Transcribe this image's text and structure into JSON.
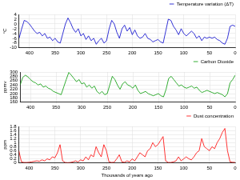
{
  "chart_data": [
    {
      "type": "line",
      "x": [
        420,
        415,
        410,
        405,
        400,
        395,
        390,
        385,
        380,
        375,
        370,
        365,
        360,
        355,
        350,
        345,
        340,
        335,
        330,
        325,
        320,
        315,
        310,
        305,
        300,
        295,
        290,
        285,
        280,
        275,
        270,
        265,
        260,
        255,
        250,
        245,
        240,
        235,
        230,
        225,
        220,
        215,
        210,
        205,
        200,
        195,
        190,
        185,
        180,
        175,
        170,
        165,
        160,
        155,
        150,
        145,
        140,
        135,
        130,
        125,
        120,
        115,
        110,
        105,
        100,
        95,
        90,
        85,
        80,
        75,
        70,
        65,
        60,
        55,
        50,
        45,
        40,
        35,
        30,
        25,
        20,
        15,
        10,
        5,
        0
      ],
      "series": [
        {
          "name": "Temperature variation (ΔT)",
          "color": "#0000cc",
          "values": [
            -6,
            -2,
            1.5,
            1,
            0,
            -1.5,
            -3,
            -4,
            -3.5,
            -5,
            -4,
            -6,
            -5.5,
            -7,
            -6,
            -7.5,
            -8,
            -4,
            0,
            2.5,
            0.5,
            -2,
            -3.5,
            -2,
            -5,
            -4,
            -6.5,
            -5,
            -7,
            -6,
            -8.5,
            -7,
            -6,
            -8,
            -7,
            -2,
            1.5,
            0,
            -3.5,
            -6,
            -2,
            -0.5,
            -3,
            -1.5,
            -4.5,
            -2.5,
            -5,
            -6,
            -5.5,
            -4,
            -6,
            -6.5,
            -7.5,
            -7,
            -6.5,
            -7.5,
            -8,
            -3,
            2,
            1.5,
            -1,
            -2.5,
            -4.5,
            -2,
            -4,
            -5,
            -4,
            -3,
            -4,
            -6,
            -5,
            -7,
            -5.5,
            -6,
            -5.5,
            -6,
            -5.5,
            -6.5,
            -7,
            -8,
            -8.5,
            -6,
            -1,
            -0.5,
            -1
          ]
        }
      ],
      "xlim": [
        420,
        0
      ],
      "xticks": [
        400,
        350,
        300,
        250,
        200,
        150,
        100,
        50,
        0
      ],
      "ylim": [
        -10,
        4
      ],
      "yticks": [
        -10,
        -8,
        -6,
        -4,
        -2,
        0,
        2,
        4
      ],
      "ylabel": "°C",
      "grid": true,
      "legend": "upper right"
    },
    {
      "type": "line",
      "x": [
        420,
        415,
        410,
        405,
        400,
        395,
        390,
        385,
        380,
        375,
        370,
        365,
        360,
        355,
        350,
        345,
        340,
        335,
        330,
        325,
        320,
        315,
        310,
        305,
        300,
        295,
        290,
        285,
        280,
        275,
        270,
        265,
        260,
        255,
        250,
        245,
        240,
        235,
        230,
        225,
        220,
        215,
        210,
        205,
        200,
        195,
        190,
        185,
        180,
        175,
        170,
        165,
        160,
        155,
        150,
        145,
        140,
        135,
        130,
        125,
        120,
        115,
        110,
        105,
        100,
        95,
        90,
        85,
        80,
        75,
        70,
        65,
        60,
        55,
        50,
        45,
        40,
        35,
        30,
        25,
        20,
        15,
        10,
        5,
        0
      ],
      "series": [
        {
          "name": "Carbon Dioxide",
          "color": "#009900",
          "values": [
            240,
            275,
            285,
            278,
            265,
            255,
            250,
            240,
            245,
            230,
            235,
            225,
            220,
            210,
            205,
            200,
            195,
            230,
            265,
            298,
            285,
            270,
            255,
            265,
            245,
            250,
            230,
            240,
            225,
            235,
            210,
            200,
            210,
            195,
            200,
            240,
            280,
            265,
            240,
            220,
            245,
            255,
            240,
            235,
            225,
            240,
            215,
            200,
            205,
            210,
            200,
            195,
            190,
            195,
            200,
            190,
            185,
            220,
            270,
            280,
            265,
            250,
            235,
            240,
            230,
            225,
            230,
            235,
            225,
            230,
            215,
            205,
            210,
            215,
            210,
            205,
            200,
            205,
            200,
            195,
            185,
            200,
            250,
            265,
            285
          ]
        }
      ],
      "xlim": [
        420,
        0
      ],
      "xticks": [
        400,
        350,
        300,
        250,
        200,
        150,
        100,
        50,
        0
      ],
      "ylim": [
        160,
        300
      ],
      "yticks": [
        160,
        180,
        200,
        220,
        240,
        260,
        280,
        300
      ],
      "ylabel": "ppmv",
      "grid": true,
      "legend": "upper right"
    },
    {
      "type": "line",
      "x": [
        420,
        415,
        410,
        405,
        400,
        395,
        390,
        385,
        380,
        375,
        370,
        365,
        360,
        355,
        350,
        345,
        340,
        335,
        330,
        325,
        320,
        315,
        310,
        305,
        300,
        295,
        290,
        285,
        280,
        275,
        270,
        265,
        260,
        255,
        250,
        245,
        240,
        235,
        230,
        225,
        220,
        215,
        210,
        205,
        200,
        195,
        190,
        185,
        180,
        175,
        170,
        165,
        160,
        155,
        150,
        145,
        140,
        135,
        130,
        125,
        120,
        115,
        110,
        105,
        100,
        95,
        90,
        85,
        80,
        75,
        70,
        65,
        60,
        55,
        50,
        45,
        40,
        35,
        30,
        25,
        20,
        15,
        10,
        5,
        0
      ],
      "series": [
        {
          "name": "Dust concentration",
          "color": "#ff0000",
          "values": [
            0.6,
            0.05,
            0.02,
            0.02,
            0.03,
            0.05,
            0.08,
            0.1,
            0.08,
            0.15,
            0.1,
            0.2,
            0.15,
            0.3,
            0.25,
            0.5,
            0.9,
            0.1,
            0.02,
            0.01,
            0.02,
            0.05,
            0.1,
            0.05,
            0.15,
            0.1,
            0.3,
            0.15,
            0.4,
            0.3,
            0.8,
            0.5,
            0.3,
            0.9,
            0.6,
            0.05,
            0.02,
            0.03,
            0.2,
            0.4,
            0.05,
            0.03,
            0.1,
            0.05,
            0.2,
            0.1,
            0.3,
            0.5,
            0.4,
            0.3,
            0.6,
            0.7,
            1.0,
            0.8,
            0.9,
            1.1,
            1.3,
            0.1,
            0.02,
            0.02,
            0.05,
            0.1,
            0.3,
            0.1,
            0.2,
            0.3,
            0.2,
            0.15,
            0.3,
            0.5,
            0.6,
            1.2,
            0.8,
            0.7,
            0.6,
            0.8,
            0.7,
            1.0,
            1.2,
            1.5,
            1.7,
            0.6,
            0.05,
            0.03,
            0.02
          ]
        }
      ],
      "xlim": [
        420,
        0
      ],
      "xticks": [
        400,
        350,
        300,
        250,
        200,
        150,
        100,
        50,
        0
      ],
      "ylim": [
        0,
        1.8
      ],
      "yticks": [
        0,
        0.2,
        0.4,
        0.6,
        0.8,
        1,
        1.2,
        1.4,
        1.6,
        1.8
      ],
      "ylabel": "ppm",
      "xlabel": "Thousands of years ago",
      "grid": true,
      "legend": "upper right"
    }
  ]
}
